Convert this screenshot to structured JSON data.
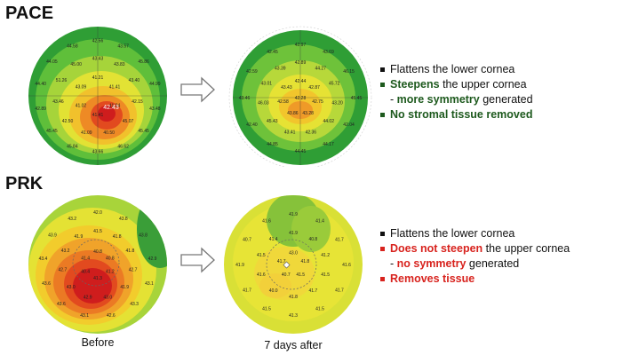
{
  "pace": {
    "title": "PACE",
    "before_values": [
      "42.43",
      "41.21",
      "41.41",
      "41.04",
      "41.41",
      "41.02",
      "43.09",
      "43.43",
      "43.83",
      "43.40",
      "42.15",
      "45.07",
      "40.50",
      "41.09",
      "42.50",
      "43.46",
      "51.26",
      "45.00",
      "42.56",
      "43.57",
      "45.86",
      "44.99",
      "43.48",
      "45.45",
      "46.62",
      "43.66",
      "45.84",
      "45.45",
      "42.89",
      "44.40",
      "44.05",
      "44.58"
    ],
    "after_values": [
      "42.28",
      "42.44",
      "42.87",
      "42.75",
      "43.28",
      "43.86",
      "42.58",
      "43.43",
      "42.89",
      "44.27",
      "45.72",
      "43.20",
      "44.02",
      "42.36",
      "43.41",
      "45.43",
      "46.03",
      "43.01",
      "43.39",
      "42.97",
      "43.69",
      "46.15",
      "45.45",
      "42.04",
      "44.17",
      "44.45",
      "44.85",
      "42.40",
      "43.46",
      "42.59",
      "42.45"
    ],
    "bullets": [
      {
        "parts": [
          {
            "text": "Flattens the lower cornea",
            "style": "plain"
          }
        ]
      },
      {
        "parts": [
          {
            "text": "Steepens",
            "style": "green"
          },
          {
            "text": " the upper cornea",
            "style": "plain"
          }
        ]
      },
      {
        "sub": true,
        "parts": [
          {
            "text": "- ",
            "style": "plain"
          },
          {
            "text": "more symmetry",
            "style": "green"
          },
          {
            "text": " generated",
            "style": "plain"
          }
        ]
      },
      {
        "parts": [
          {
            "text": "No stromal tissue removed",
            "style": "green"
          }
        ]
      }
    ]
  },
  "prk": {
    "title": "PRK",
    "before_values": [
      "40.8",
      "40.8",
      "41.2",
      "41.3",
      "40.4",
      "41.4",
      "41.5",
      "41.8",
      "41.8",
      "42.7",
      "41.9",
      "43.0",
      "42.9",
      "43.0",
      "42.7",
      "43.2",
      "41.9",
      "42.0",
      "43.8",
      "43.8",
      "42.9",
      "43.1",
      "43.3",
      "42.6",
      "43.1",
      "43.6",
      "43.6",
      "43.4",
      "43.9",
      "43.2"
    ],
    "after_values": [
      "43.0",
      "41.8",
      "41.5",
      "40.7",
      "41.7",
      "41.9",
      "40.8",
      "41.2",
      "41.5",
      "41.7",
      "41.8",
      "40.0",
      "41.6",
      "41.5",
      "41.4",
      "41.9",
      "41.4",
      "41.7",
      "41.6",
      "41.7",
      "41.5",
      "41.3",
      "41.5",
      "41.7",
      "41.9",
      "40.7",
      "41.6"
    ],
    "bullets": [
      {
        "parts": [
          {
            "text": "Flattens the lower cornea",
            "style": "plain"
          }
        ]
      },
      {
        "parts": [
          {
            "text": "Does not steepen",
            "style": "red"
          },
          {
            "text": " the upper cornea",
            "style": "plain"
          }
        ]
      },
      {
        "sub": true,
        "parts": [
          {
            "text": "- ",
            "style": "plain"
          },
          {
            "text": "no symmetry",
            "style": "red"
          },
          {
            "text": " generated",
            "style": "plain"
          }
        ]
      },
      {
        "parts": [
          {
            "text": "Removes tissue",
            "style": "red"
          }
        ]
      }
    ]
  },
  "captions": {
    "before": "Before",
    "after": "7 days after"
  },
  "colors": {
    "pace_bullet": "#1e5a1e",
    "prk_bullet": "#d8231e"
  }
}
